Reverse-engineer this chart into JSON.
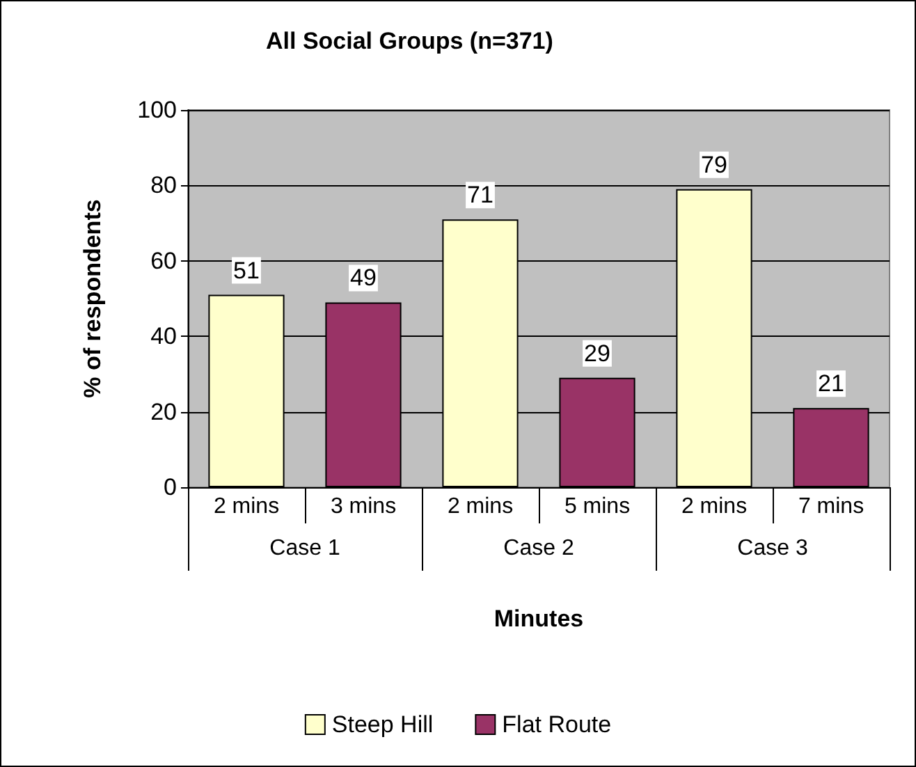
{
  "chart_data": {
    "type": "bar",
    "title": "All Social Groups (n=371)",
    "xlabel": "Minutes",
    "ylabel": "% of respondents",
    "categories": [
      "2 mins",
      "3 mins",
      "2 mins",
      "5 mins",
      "2 mins",
      "7 mins"
    ],
    "annotations": [
      "Case 1",
      "Case 2",
      "Case 3"
    ],
    "series": [
      {
        "name": "Steep Hill",
        "color": "#ffffcc",
        "values": [
          51,
          null,
          71,
          null,
          79,
          null
        ]
      },
      {
        "name": "Flat Route",
        "color": "#993366",
        "values": [
          null,
          49,
          null,
          29,
          null,
          21
        ]
      }
    ],
    "ylim": [
      0,
      100
    ],
    "yticks": [
      0,
      20,
      40,
      60,
      80,
      100
    ],
    "grid": "y",
    "legend": "bottom",
    "data_labels": true
  }
}
